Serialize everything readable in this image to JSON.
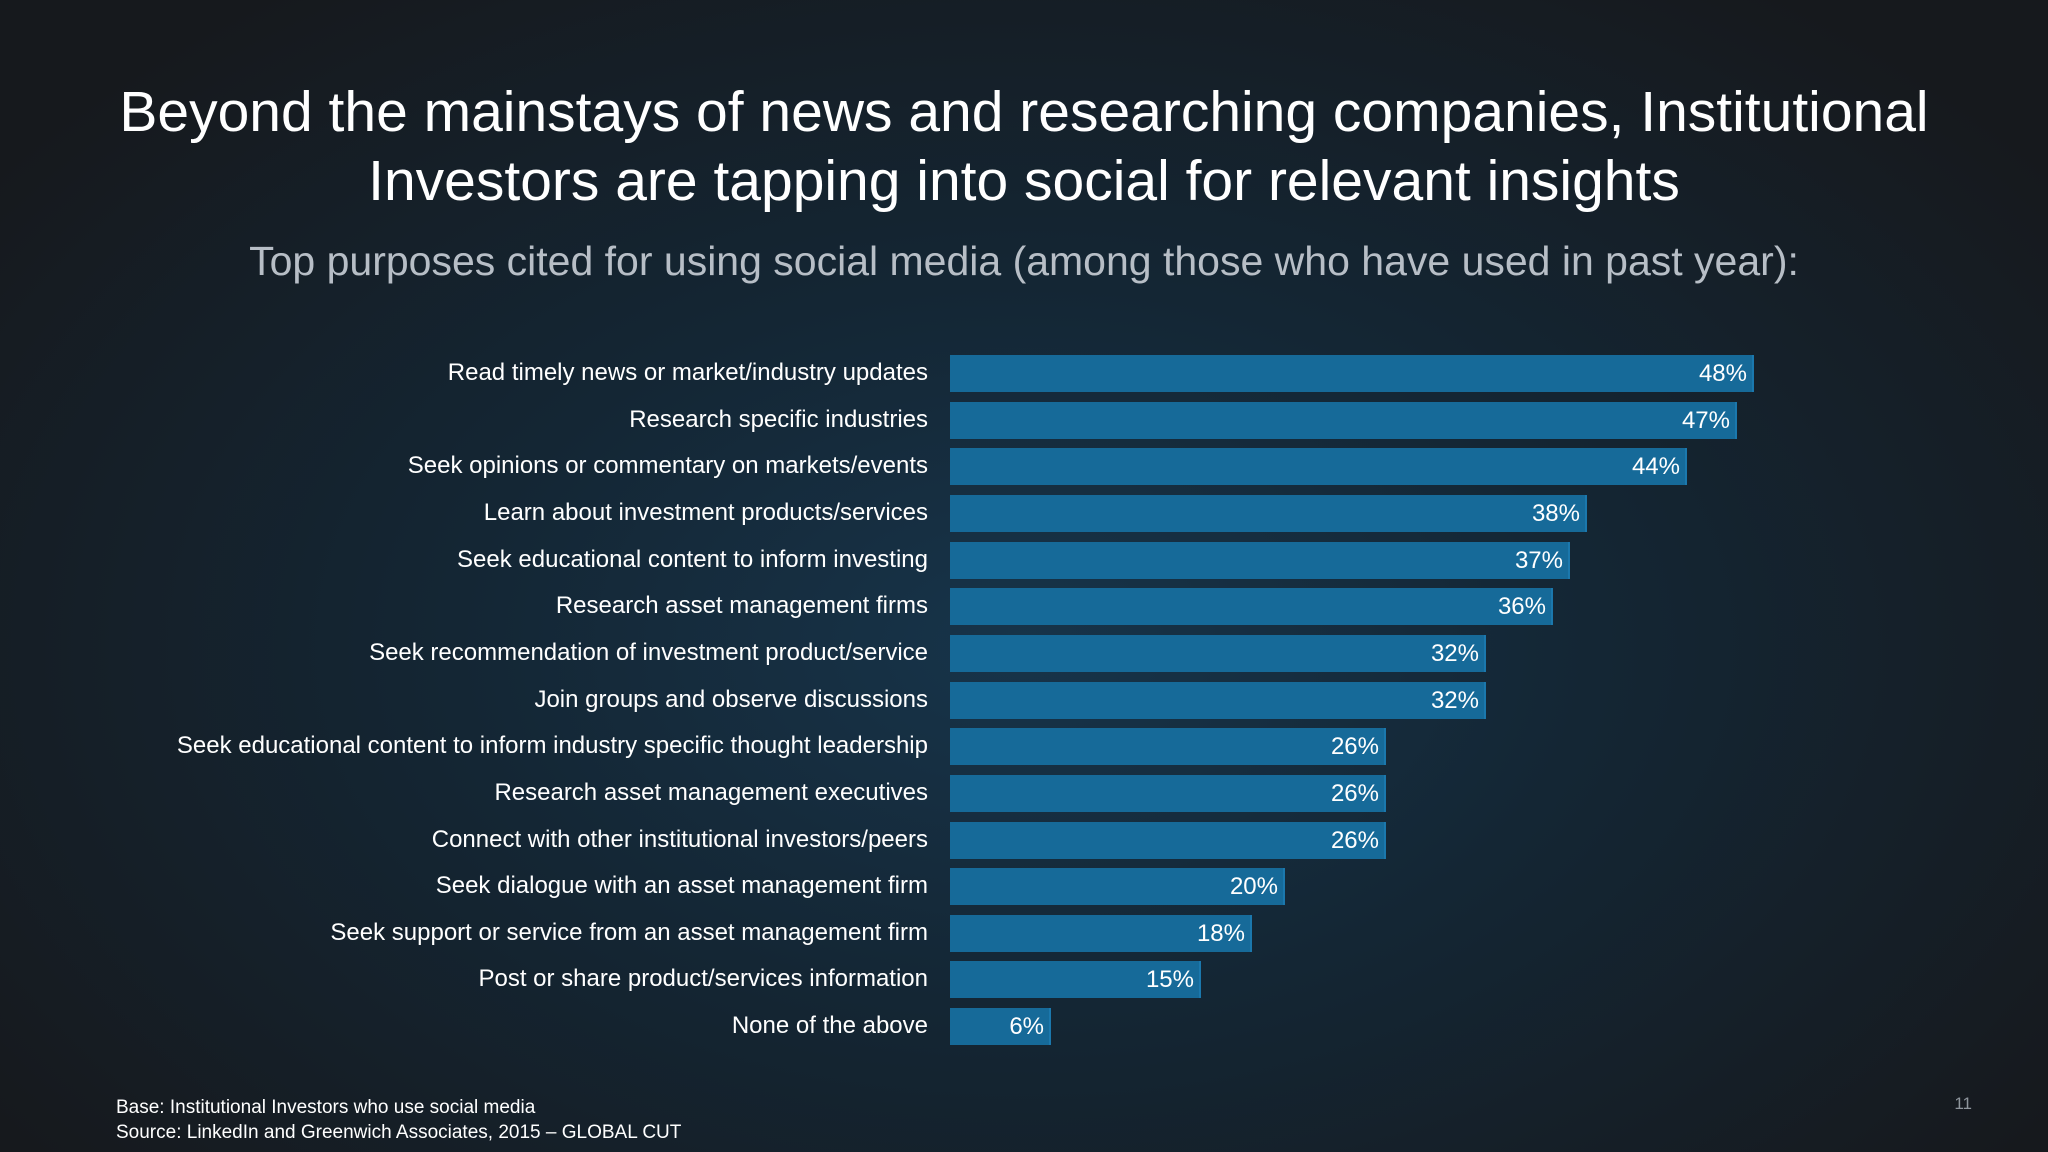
{
  "title": {
    "line1": "Beyond the mainstays of news and researching companies, Institutional",
    "line2": "Investors are tapping into social for relevant insights"
  },
  "subtitle": "Top purposes cited for using social media (among those who have used in past year):",
  "footer": {
    "base": "Base: Institutional Investors who use social media",
    "source": "Source: LinkedIn and Greenwich Associates, 2015 – GLOBAL CUT",
    "page_number": "11"
  },
  "colors": {
    "bar": "#166a99",
    "text": "#ffffff"
  },
  "chart_data": {
    "type": "bar",
    "orientation": "horizontal",
    "title": "Top purposes cited for using social media (among those who have used in past year):",
    "xlabel": "",
    "ylabel": "",
    "xlim": [
      0,
      48
    ],
    "grid": false,
    "legend": "none",
    "categories": [
      "Read timely news or market/industry updates",
      "Research specific industries",
      "Seek opinions or commentary on markets/events",
      "Learn about investment products/services",
      "Seek educational content to inform investing",
      "Research asset management firms",
      "Seek recommendation of investment product/service",
      "Join groups and observe discussions",
      "Seek educational content to inform industry specific thought leadership",
      "Research asset management executives",
      "Connect with other institutional investors/peers",
      "Seek dialogue with an asset management firm",
      "Seek support or service from an asset management firm",
      "Post or share product/services information",
      "None of the above"
    ],
    "values": [
      48,
      47,
      44,
      38,
      37,
      36,
      32,
      32,
      26,
      26,
      26,
      20,
      18,
      15,
      6
    ],
    "value_labels": [
      "48%",
      "47%",
      "44%",
      "38%",
      "37%",
      "36%",
      "32%",
      "32%",
      "26%",
      "26%",
      "26%",
      "20%",
      "18%",
      "15%",
      "6%"
    ]
  }
}
